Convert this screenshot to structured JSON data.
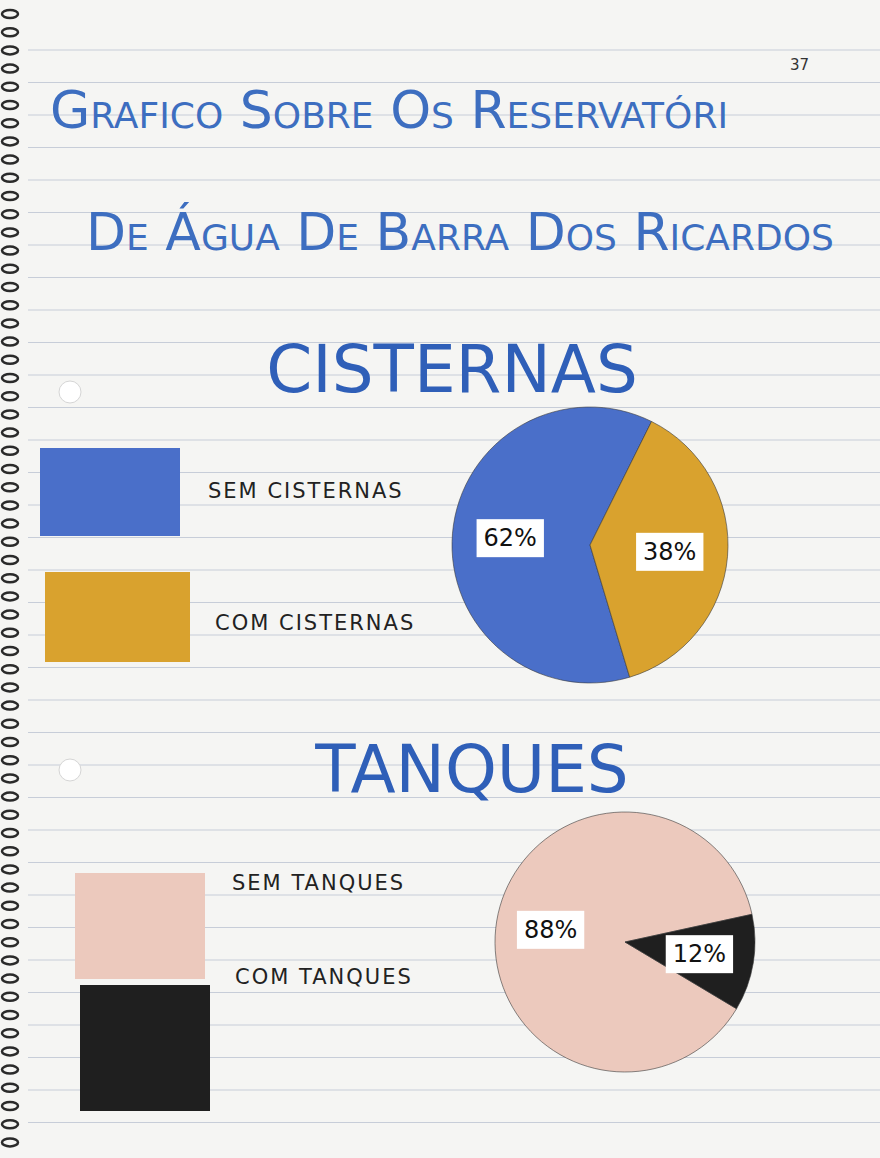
{
  "header": {
    "page_number": "37",
    "title": [
      "Grafico Sobre Os Reservatóri",
      "De Água De Barra Dos Ricardos"
    ]
  },
  "chart_data": [
    {
      "type": "pie",
      "title": "CISTERNAS",
      "categories": [
        "SEM CISTERNAS",
        "COM CISTERNAS"
      ],
      "values": [
        62,
        38
      ],
      "value_labels": [
        "62%",
        "38%"
      ],
      "colors": [
        "#4a6fc9",
        "#d9a22e"
      ],
      "data_labels": true,
      "legend": "left"
    },
    {
      "type": "pie",
      "title": "TANQUES",
      "categories": [
        "SEM TANQUES",
        "COM TANQUES"
      ],
      "values": [
        88,
        12
      ],
      "value_labels": [
        "88%",
        "12%"
      ],
      "colors": [
        "#ecc9bd",
        "#1f1f1f"
      ],
      "data_labels": true,
      "legend": "left"
    }
  ]
}
